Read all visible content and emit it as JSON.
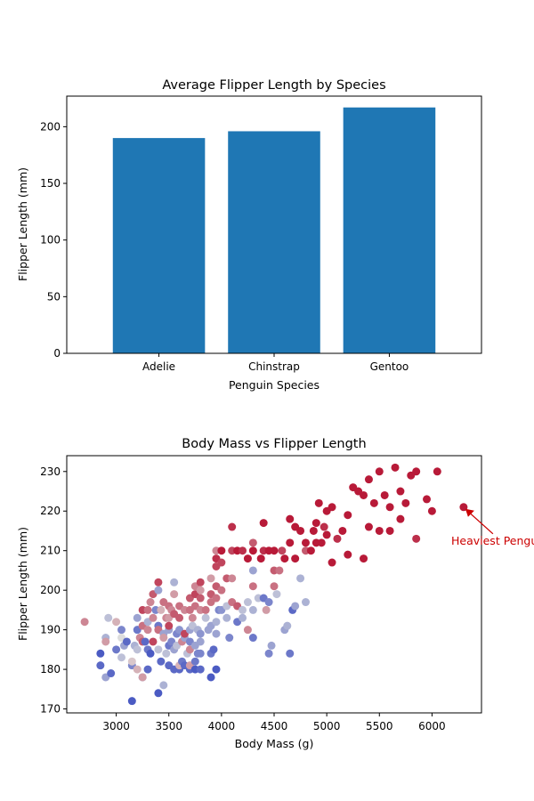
{
  "colors": {
    "bar": "#1f77b4",
    "annotation": "#cc0000",
    "cmap_low": "#3b4cc0",
    "cmap_mid": "#dddddd",
    "cmap_high": "#b40426"
  },
  "chart_data": [
    {
      "type": "bar",
      "title": "Average Flipper Length by Species",
      "xlabel": "Penguin Species",
      "ylabel": "Flipper Length (mm)",
      "categories": [
        "Adelie",
        "Chinstrap",
        "Gentoo"
      ],
      "values": [
        190,
        196,
        217
      ],
      "ylim": [
        0,
        227
      ],
      "yticks": [
        0,
        50,
        100,
        150,
        200
      ],
      "grid": false
    },
    {
      "type": "scatter",
      "title": "Body Mass vs Flipper Length",
      "xlabel": "Body Mass (g)",
      "ylabel": "Flipper Length (mm)",
      "xlim": [
        2530,
        6470
      ],
      "ylim": [
        169,
        234
      ],
      "xticks": [
        3000,
        3500,
        4000,
        4500,
        5000,
        5500,
        6000
      ],
      "yticks": [
        170,
        180,
        190,
        200,
        210,
        220,
        230
      ],
      "grid": false,
      "colormap": "coolwarm",
      "annotation": {
        "text": "Heaviest Penguin",
        "x": 6300,
        "y": 221
      },
      "points": [
        [
          2700,
          192,
          0.7
        ],
        [
          2850,
          184,
          0.05
        ],
        [
          2850,
          181,
          0.1
        ],
        [
          2900,
          178,
          0.3
        ],
        [
          2900,
          188,
          0.35
        ],
        [
          2900,
          187,
          0.65
        ],
        [
          2925,
          193,
          0.4
        ],
        [
          2950,
          179,
          0.1
        ],
        [
          3000,
          185,
          0.15
        ],
        [
          3000,
          192,
          0.6
        ],
        [
          3050,
          190,
          0.2
        ],
        [
          3050,
          188,
          0.5
        ],
        [
          3050,
          183,
          0.4
        ],
        [
          3075,
          186,
          0.3
        ],
        [
          3100,
          187,
          0.1
        ],
        [
          3150,
          181,
          0.2
        ],
        [
          3150,
          172,
          0.05
        ],
        [
          3150,
          182,
          0.55
        ],
        [
          3175,
          186,
          0.35
        ],
        [
          3200,
          190,
          0.15
        ],
        [
          3200,
          185,
          0.4
        ],
        [
          3200,
          180,
          0.6
        ],
        [
          3200,
          193,
          0.3
        ],
        [
          3225,
          188,
          0.7
        ],
        [
          3250,
          178,
          0.2
        ],
        [
          3250,
          191,
          0.75
        ],
        [
          3250,
          195,
          0.85
        ],
        [
          3250,
          178,
          0.65
        ],
        [
          3250,
          187,
          0.8
        ],
        [
          3275,
          187,
          0.1
        ],
        [
          3300,
          185,
          0.15
        ],
        [
          3300,
          192,
          0.35
        ],
        [
          3300,
          195,
          0.75
        ],
        [
          3300,
          180,
          0.1
        ],
        [
          3300,
          190,
          0.7
        ],
        [
          3325,
          184,
          0.05
        ],
        [
          3325,
          197,
          0.7
        ],
        [
          3350,
          199,
          0.8
        ],
        [
          3350,
          193,
          0.7
        ],
        [
          3350,
          187,
          0.85
        ],
        [
          3375,
          195,
          0.2
        ],
        [
          3400,
          174,
          0.05
        ],
        [
          3400,
          191,
          0.15
        ],
        [
          3400,
          200,
          0.3
        ],
        [
          3400,
          202,
          0.85
        ],
        [
          3400,
          190,
          0.75
        ],
        [
          3400,
          185,
          0.4
        ],
        [
          3425,
          182,
          0.1
        ],
        [
          3425,
          195,
          0.6
        ],
        [
          3450,
          197,
          0.75
        ],
        [
          3450,
          189,
          0.3
        ],
        [
          3450,
          188,
          0.65
        ],
        [
          3450,
          176,
          0.35
        ],
        [
          3475,
          184,
          0.4
        ],
        [
          3475,
          193,
          0.7
        ],
        [
          3500,
          186,
          0.15
        ],
        [
          3500,
          190,
          0.3
        ],
        [
          3500,
          196,
          0.75
        ],
        [
          3500,
          181,
          0.1
        ],
        [
          3500,
          193,
          0.65
        ],
        [
          3500,
          191,
          0.85
        ],
        [
          3525,
          187,
          0.2
        ],
        [
          3525,
          195,
          0.7
        ],
        [
          3550,
          180,
          0.1
        ],
        [
          3550,
          185,
          0.3
        ],
        [
          3550,
          194,
          0.8
        ],
        [
          3550,
          202,
          0.35
        ],
        [
          3550,
          199,
          0.65
        ],
        [
          3575,
          186,
          0.4
        ],
        [
          3575,
          189,
          0.2
        ],
        [
          3600,
          180,
          0.1
        ],
        [
          3600,
          181,
          0.6
        ],
        [
          3600,
          190,
          0.25
        ],
        [
          3600,
          196,
          0.75
        ],
        [
          3600,
          193,
          0.8
        ],
        [
          3625,
          182,
          0.15
        ],
        [
          3625,
          187,
          0.7
        ],
        [
          3650,
          181,
          0.1
        ],
        [
          3650,
          188,
          0.3
        ],
        [
          3650,
          189,
          0.85
        ],
        [
          3650,
          195,
          0.7
        ],
        [
          3675,
          184,
          0.4
        ],
        [
          3700,
          180,
          0.1
        ],
        [
          3700,
          187,
          0.2
        ],
        [
          3700,
          190,
          0.3
        ],
        [
          3700,
          195,
          0.75
        ],
        [
          3700,
          198,
          0.8
        ],
        [
          3700,
          185,
          0.7
        ],
        [
          3700,
          181,
          0.65
        ],
        [
          3725,
          191,
          0.4
        ],
        [
          3725,
          193,
          0.7
        ],
        [
          3750,
          180,
          0.05
        ],
        [
          3750,
          182,
          0.15
        ],
        [
          3750,
          186,
          0.3
        ],
        [
          3750,
          196,
          0.75
        ],
        [
          3750,
          199,
          0.85
        ],
        [
          3750,
          201,
          0.7
        ],
        [
          3775,
          184,
          0.2
        ],
        [
          3775,
          190,
          0.35
        ],
        [
          3800,
          180,
          0.1
        ],
        [
          3800,
          184,
          0.2
        ],
        [
          3800,
          187,
          0.3
        ],
        [
          3800,
          189,
          0.25
        ],
        [
          3800,
          195,
          0.7
        ],
        [
          3800,
          198,
          0.8
        ],
        [
          3800,
          200,
          0.65
        ],
        [
          3800,
          202,
          0.85
        ],
        [
          3850,
          193,
          0.4
        ],
        [
          3850,
          195,
          0.75
        ],
        [
          3875,
          190,
          0.3
        ],
        [
          3900,
          178,
          0.05
        ],
        [
          3900,
          184,
          0.15
        ],
        [
          3900,
          191,
          0.3
        ],
        [
          3900,
          197,
          0.75
        ],
        [
          3900,
          199,
          0.8
        ],
        [
          3900,
          203,
          0.65
        ],
        [
          3925,
          185,
          0.1
        ],
        [
          3950,
          180,
          0.05
        ],
        [
          3950,
          189,
          0.3
        ],
        [
          3950,
          192,
          0.35
        ],
        [
          3950,
          198,
          0.75
        ],
        [
          3950,
          201,
          0.8
        ],
        [
          3950,
          206,
          0.85
        ],
        [
          3950,
          208,
          0.9
        ],
        [
          3950,
          210,
          0.7
        ],
        [
          3975,
          195,
          0.2
        ],
        [
          4000,
          195,
          0.25
        ],
        [
          4000,
          200,
          0.75
        ],
        [
          4000,
          207,
          0.85
        ],
        [
          4000,
          210,
          0.95
        ],
        [
          4050,
          193,
          0.35
        ],
        [
          4050,
          196,
          0.4
        ],
        [
          4050,
          203,
          0.8
        ],
        [
          4075,
          188,
          0.2
        ],
        [
          4100,
          197,
          0.75
        ],
        [
          4100,
          203,
          0.7
        ],
        [
          4100,
          210,
          0.85
        ],
        [
          4100,
          216,
          0.9
        ],
        [
          4150,
          192,
          0.15
        ],
        [
          4150,
          196,
          0.8
        ],
        [
          4150,
          210,
          0.95
        ],
        [
          4200,
          195,
          0.4
        ],
        [
          4200,
          193,
          0.35
        ],
        [
          4200,
          210,
          0.9
        ],
        [
          4250,
          190,
          0.7
        ],
        [
          4250,
          197,
          0.4
        ],
        [
          4250,
          208,
          0.95
        ],
        [
          4300,
          188,
          0.15
        ],
        [
          4300,
          195,
          0.35
        ],
        [
          4300,
          201,
          0.75
        ],
        [
          4300,
          205,
          0.3
        ],
        [
          4300,
          210,
          0.95
        ],
        [
          4300,
          212,
          0.8
        ],
        [
          4350,
          198,
          0.4
        ],
        [
          4375,
          208,
          0.95
        ],
        [
          4400,
          198,
          0.15
        ],
        [
          4400,
          210,
          0.9
        ],
        [
          4400,
          217,
          0.95
        ],
        [
          4425,
          195,
          0.65
        ],
        [
          4450,
          184,
          0.2
        ],
        [
          4450,
          197,
          0.2
        ],
        [
          4450,
          210,
          0.95
        ],
        [
          4475,
          186,
          0.3
        ],
        [
          4500,
          201,
          0.75
        ],
        [
          4500,
          205,
          0.8
        ],
        [
          4500,
          210,
          0.95
        ],
        [
          4525,
          199,
          0.4
        ],
        [
          4550,
          205,
          0.75
        ],
        [
          4575,
          210,
          0.85
        ],
        [
          4600,
          190,
          0.3
        ],
        [
          4600,
          208,
          0.95
        ],
        [
          4625,
          191,
          0.35
        ],
        [
          4650,
          184,
          0.15
        ],
        [
          4650,
          212,
          0.95
        ],
        [
          4650,
          218,
          0.95
        ],
        [
          4675,
          195,
          0.1
        ],
        [
          4700,
          196,
          0.3
        ],
        [
          4700,
          208,
          0.95
        ],
        [
          4700,
          216,
          0.95
        ],
        [
          4750,
          203,
          0.35
        ],
        [
          4750,
          215,
          0.95
        ],
        [
          4800,
          212,
          0.95
        ],
        [
          4800,
          197,
          0.35
        ],
        [
          4800,
          210,
          0.8
        ],
        [
          4850,
          210,
          0.95
        ],
        [
          4875,
          215,
          0.95
        ],
        [
          4900,
          212,
          0.95
        ],
        [
          4900,
          217,
          0.95
        ],
        [
          4925,
          222,
          0.95
        ],
        [
          4950,
          212,
          0.95
        ],
        [
          4975,
          216,
          0.9
        ],
        [
          5000,
          214,
          0.95
        ],
        [
          5000,
          220,
          0.95
        ],
        [
          5050,
          207,
          0.95
        ],
        [
          5050,
          221,
          0.95
        ],
        [
          5100,
          213,
          0.9
        ],
        [
          5150,
          215,
          0.95
        ],
        [
          5200,
          209,
          0.95
        ],
        [
          5200,
          219,
          0.95
        ],
        [
          5250,
          226,
          0.95
        ],
        [
          5300,
          225,
          0.95
        ],
        [
          5350,
          208,
          0.95
        ],
        [
          5350,
          224,
          0.95
        ],
        [
          5400,
          216,
          0.95
        ],
        [
          5400,
          228,
          0.95
        ],
        [
          5450,
          222,
          0.95
        ],
        [
          5500,
          230,
          0.95
        ],
        [
          5500,
          215,
          0.95
        ],
        [
          5550,
          224,
          0.95
        ],
        [
          5600,
          215,
          0.95
        ],
        [
          5600,
          221,
          0.95
        ],
        [
          5650,
          231,
          0.95
        ],
        [
          5700,
          218,
          0.95
        ],
        [
          5700,
          225,
          0.95
        ],
        [
          5750,
          222,
          0.95
        ],
        [
          5800,
          229,
          0.95
        ],
        [
          5850,
          230,
          0.95
        ],
        [
          5850,
          213,
          0.9
        ],
        [
          5950,
          223,
          0.95
        ],
        [
          6000,
          220,
          0.95
        ],
        [
          6050,
          230,
          0.95
        ],
        [
          6300,
          221,
          0.95
        ]
      ]
    }
  ]
}
